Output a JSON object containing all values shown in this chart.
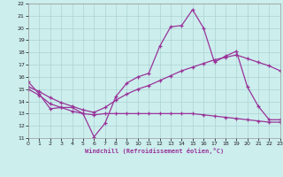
{
  "xlabel": "Windchill (Refroidissement éolien,°C)",
  "background_color": "#cceeed",
  "grid_color": "#aad4d3",
  "line_color": "#993399",
  "xmin": 0,
  "xmax": 23,
  "ymin": 11,
  "ymax": 22,
  "x_ticks": [
    0,
    1,
    2,
    3,
    4,
    5,
    6,
    7,
    8,
    9,
    10,
    11,
    12,
    13,
    14,
    15,
    16,
    17,
    18,
    19,
    20,
    21,
    22,
    23
  ],
  "y_ticks": [
    11,
    12,
    13,
    14,
    15,
    16,
    17,
    18,
    19,
    20,
    21,
    22
  ],
  "line1_x": [
    0,
    1,
    2,
    3,
    4,
    5,
    6,
    7,
    8,
    9,
    10,
    11,
    12,
    13,
    14,
    15,
    16,
    17,
    18,
    19,
    20,
    21,
    22,
    23
  ],
  "line1_y": [
    15.6,
    14.6,
    13.4,
    13.5,
    13.5,
    13.0,
    11.1,
    12.2,
    14.4,
    15.5,
    16.0,
    16.3,
    18.5,
    20.1,
    20.2,
    21.5,
    20.0,
    17.2,
    17.7,
    18.1,
    15.2,
    13.6,
    12.5,
    12.5
  ],
  "line2_x": [
    0,
    1,
    2,
    3,
    4,
    5,
    6,
    7,
    8,
    9,
    10,
    11,
    12,
    13,
    14,
    15,
    16,
    17,
    18,
    19,
    20,
    21,
    22,
    23
  ],
  "line2_y": [
    15.2,
    14.8,
    14.3,
    13.9,
    13.6,
    13.3,
    13.1,
    13.5,
    14.1,
    14.6,
    15.0,
    15.3,
    15.7,
    16.1,
    16.5,
    16.8,
    17.1,
    17.4,
    17.6,
    17.8,
    17.5,
    17.2,
    16.9,
    16.5
  ],
  "line3_x": [
    0,
    1,
    2,
    3,
    4,
    5,
    6,
    7,
    8,
    9,
    10,
    11,
    12,
    13,
    14,
    15,
    16,
    17,
    18,
    19,
    20,
    21,
    22,
    23
  ],
  "line3_y": [
    15.0,
    14.5,
    13.8,
    13.5,
    13.2,
    13.0,
    12.9,
    13.0,
    13.0,
    13.0,
    13.0,
    13.0,
    13.0,
    13.0,
    13.0,
    13.0,
    12.9,
    12.8,
    12.7,
    12.6,
    12.5,
    12.4,
    12.3,
    12.3
  ]
}
